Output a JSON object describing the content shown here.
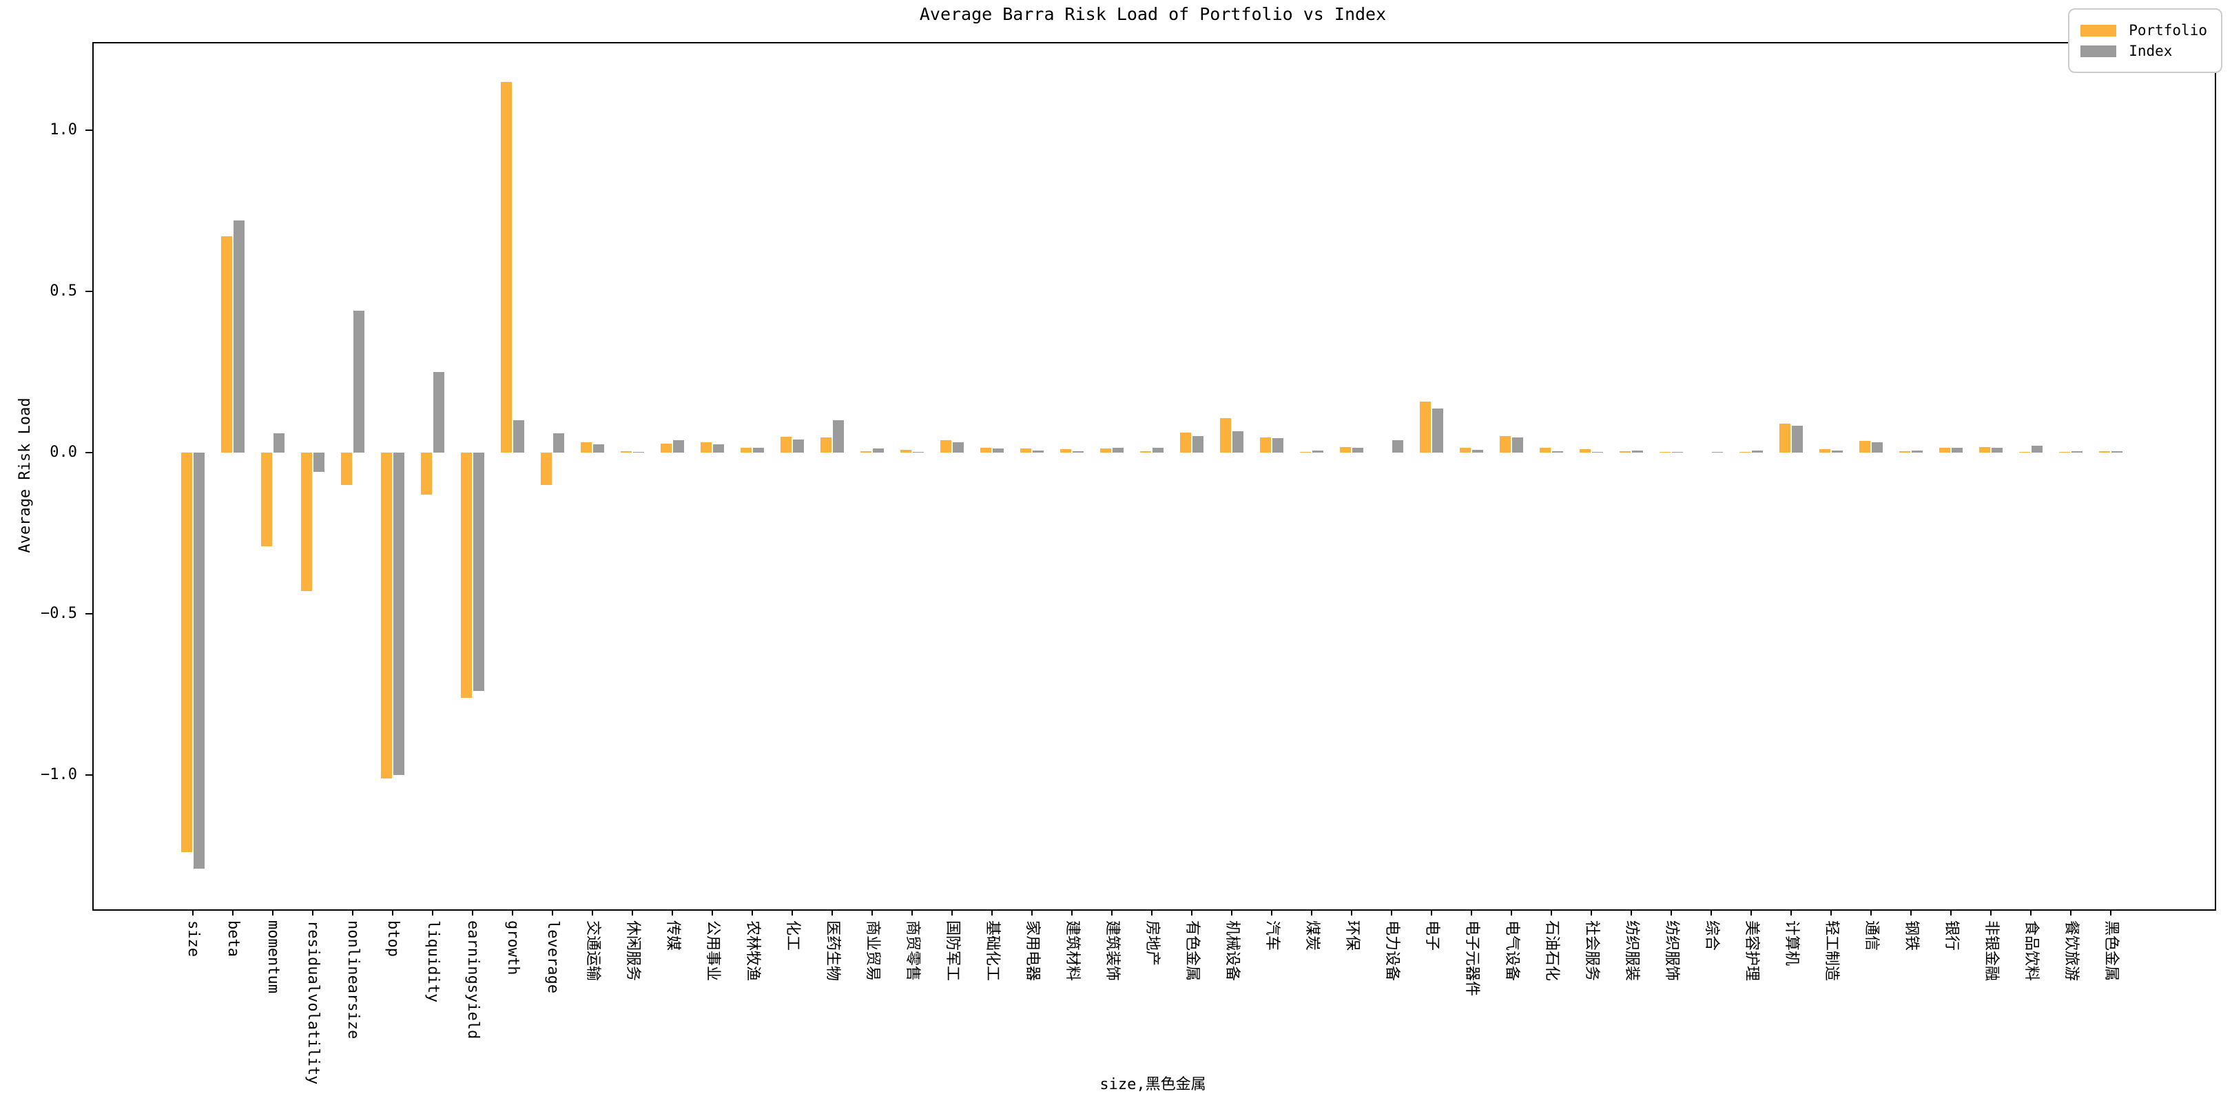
{
  "chart_data": {
    "type": "bar",
    "title": "Average Barra Risk Load of Portfolio vs Index",
    "ylabel": "Average Risk Load",
    "xlabel": "size,黑色金属",
    "ylim": [
      -1.41,
      1.27
    ],
    "grid": false,
    "legend_position": "upper right",
    "yticks": [
      {
        "value": 1.0,
        "label": "1.0"
      },
      {
        "value": 0.5,
        "label": "0.5"
      },
      {
        "value": 0.0,
        "label": "0.0"
      },
      {
        "value": -0.5,
        "label": "−0.5"
      },
      {
        "value": -1.0,
        "label": "−1.0"
      }
    ],
    "categories": [
      "size",
      "beta",
      "momentum",
      "residualvolatility",
      "nonlinearsize",
      "btop",
      "liquidity",
      "earningsyield",
      "growth",
      "leverage",
      "交通运输",
      "休闲服务",
      "传媒",
      "公用事业",
      "农林牧渔",
      "化工",
      "医药生物",
      "商业贸易",
      "商贸零售",
      "国防军工",
      "基础化工",
      "家用电器",
      "建筑材料",
      "建筑装饰",
      "房地产",
      "有色金属",
      "机械设备",
      "汽车",
      "煤炭",
      "环保",
      "电力设备",
      "电子",
      "电子元器件",
      "电气设备",
      "石油石化",
      "社会服务",
      "纺织服装",
      "纺织服饰",
      "综合",
      "美容护理",
      "计算机",
      "轻工制造",
      "通信",
      "钢铁",
      "银行",
      "非银金融",
      "食品饮料",
      "餐饮旅游",
      "黑色金属"
    ],
    "series": [
      {
        "name": "Portfolio",
        "color": "#FBB13C",
        "values": [
          -1.24,
          0.67,
          -0.29,
          -0.43,
          -0.1,
          -1.01,
          -0.13,
          -0.76,
          1.15,
          -0.1,
          0.032,
          0.005,
          0.027,
          0.031,
          0.014,
          0.05,
          0.048,
          0.004,
          0.009,
          0.039,
          0.016,
          0.013,
          0.011,
          0.012,
          0.005,
          0.061,
          0.106,
          0.048,
          0.001,
          0.017,
          0.0,
          0.159,
          0.014,
          0.052,
          0.016,
          0.011,
          0.004,
          0.001,
          0.0,
          0.001,
          0.089,
          0.011,
          0.037,
          0.004,
          0.015,
          0.018,
          0.003,
          0.002,
          0.004
        ]
      },
      {
        "name": "Index",
        "color": "#9B9B9B",
        "values": [
          -1.29,
          0.72,
          0.06,
          -0.06,
          0.44,
          -1.0,
          0.25,
          -0.74,
          0.1,
          0.06,
          0.025,
          0.003,
          0.039,
          0.026,
          0.016,
          0.041,
          0.1,
          0.012,
          0.002,
          0.032,
          0.012,
          0.007,
          0.005,
          0.016,
          0.016,
          0.052,
          0.067,
          0.044,
          0.006,
          0.014,
          0.039,
          0.136,
          0.009,
          0.048,
          0.005,
          0.003,
          0.007,
          0.002,
          0.002,
          0.006,
          0.083,
          0.007,
          0.033,
          0.007,
          0.014,
          0.014,
          0.021,
          0.004,
          0.004
        ]
      }
    ]
  }
}
